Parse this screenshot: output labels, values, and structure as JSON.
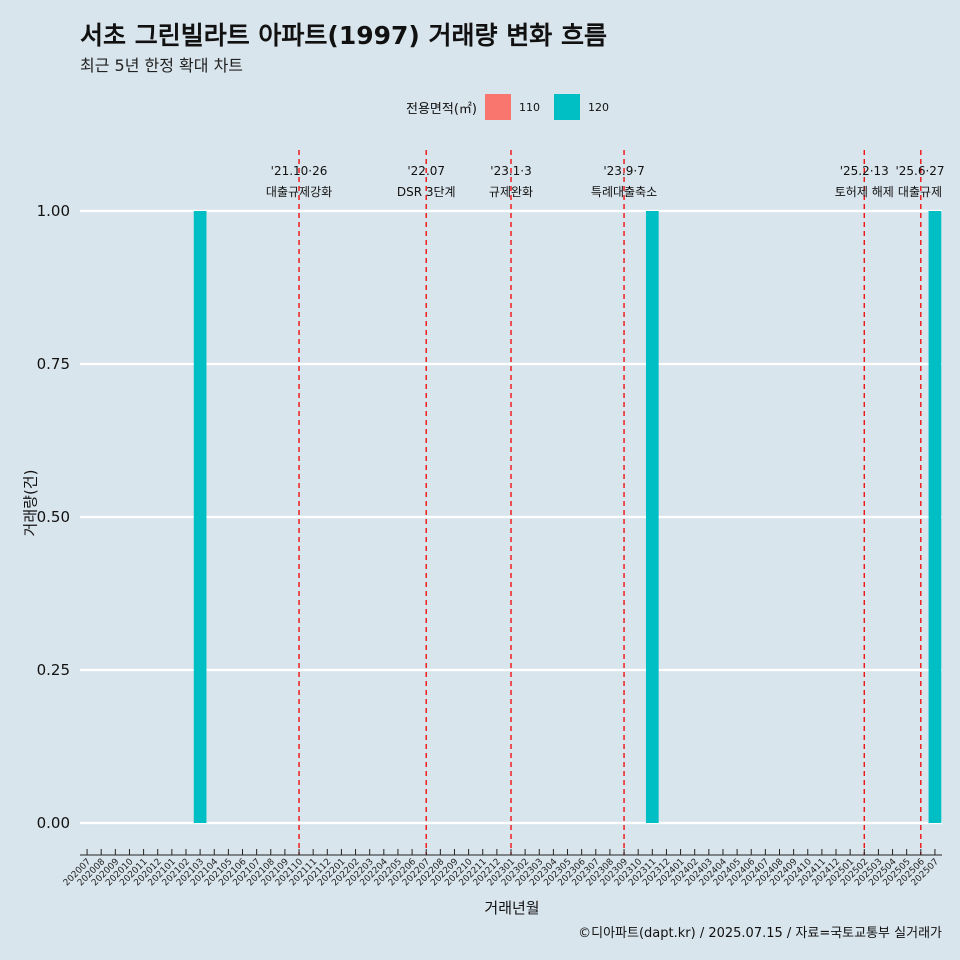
{
  "title": "서초 그린빌라트 아파트(1997) 거래량 변화 흐름",
  "subtitle": "최근 5년 한정 확대 차트",
  "caption": "©디아파트(dapt.kr) / 2025.07.15 / 자료=국토교통부 실거래가",
  "legend": {
    "title": "전용면적(㎡)",
    "items": [
      {
        "label": "110",
        "color": "#f8766d"
      },
      {
        "label": "120",
        "color": "#00bfc4"
      }
    ]
  },
  "chart_data": {
    "type": "bar",
    "xlabel": "거래년월",
    "ylabel": "거래량(건)",
    "ylim": [
      0,
      1
    ],
    "y_ticks": [
      "0.00",
      "0.25",
      "0.50",
      "0.75",
      "1.00"
    ],
    "grid": "horizontal",
    "legend_position": "top",
    "categories": [
      "202007",
      "202008",
      "202009",
      "202010",
      "202011",
      "202012",
      "202101",
      "202102",
      "202103",
      "202104",
      "202105",
      "202106",
      "202107",
      "202108",
      "202109",
      "202110",
      "202111",
      "202112",
      "202201",
      "202202",
      "202203",
      "202204",
      "202205",
      "202206",
      "202207",
      "202208",
      "202209",
      "202210",
      "202211",
      "202212",
      "202301",
      "202302",
      "202303",
      "202304",
      "202305",
      "202306",
      "202307",
      "202308",
      "202309",
      "202310",
      "202311",
      "202312",
      "202401",
      "202402",
      "202403",
      "202404",
      "202405",
      "202406",
      "202407",
      "202408",
      "202409",
      "202410",
      "202411",
      "202412",
      "202501",
      "202502",
      "202503",
      "202504",
      "202505",
      "202506",
      "202507"
    ],
    "series": [
      {
        "name": "110",
        "color": "#f8766d",
        "values": [
          0,
          0,
          0,
          0,
          0,
          0,
          0,
          0,
          0,
          0,
          0,
          0,
          0,
          0,
          0,
          0,
          0,
          0,
          0,
          0,
          0,
          0,
          0,
          0,
          0,
          0,
          0,
          0,
          0,
          0,
          0,
          0,
          0,
          0,
          0,
          0,
          0,
          0,
          0,
          0,
          0,
          0,
          0,
          0,
          0,
          0,
          0,
          0,
          0,
          0,
          0,
          0,
          0,
          0,
          0,
          0,
          0,
          0,
          0,
          0,
          0
        ]
      },
      {
        "name": "120",
        "color": "#00bfc4",
        "values": [
          0,
          0,
          0,
          0,
          0,
          0,
          0,
          0,
          1,
          0,
          0,
          0,
          0,
          0,
          0,
          0,
          0,
          0,
          0,
          0,
          0,
          0,
          0,
          0,
          0,
          0,
          0,
          0,
          0,
          0,
          0,
          0,
          0,
          0,
          0,
          0,
          0,
          0,
          0,
          0,
          1,
          0,
          0,
          0,
          0,
          0,
          0,
          0,
          0,
          0,
          0,
          0,
          0,
          0,
          0,
          0,
          0,
          0,
          0,
          0,
          1
        ]
      }
    ],
    "annotations": [
      {
        "x": "202110",
        "date": "'21.10·26",
        "label": "대출규제강화"
      },
      {
        "x": "202207",
        "date": "'22.07",
        "label": "DSR 3단계"
      },
      {
        "x": "202301",
        "date": "'23.1·3",
        "label": "규제완화"
      },
      {
        "x": "202309",
        "date": "'23.9·7",
        "label": "특례대출축소"
      },
      {
        "x": "202502",
        "date": "'25.2·13",
        "label": "토허제 해제"
      },
      {
        "x": "202506",
        "date": "'25.6·27",
        "label": "대출규제"
      }
    ]
  }
}
